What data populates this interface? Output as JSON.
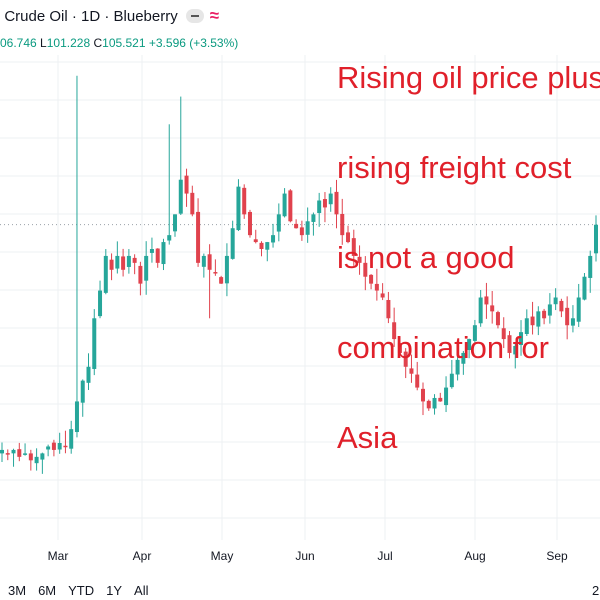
{
  "header": {
    "title": "I Crude Oil · 1D · Blueberry",
    "ohlc": {
      "open_frag": "06.746",
      "low_label": "L",
      "low": "101.228",
      "close_label": "C",
      "close": "105.521",
      "change": "+3.596 (+3.53%)"
    }
  },
  "annotation": {
    "lines": [
      "Rising oil price plus",
      "rising freight cost",
      "is not a good",
      "combination for",
      "Asia"
    ]
  },
  "range_buttons": [
    "3M",
    "6M",
    "YTD",
    "1Y",
    "All"
  ],
  "corner_fragment": "2",
  "chart_data": {
    "type": "candlestick",
    "title": "",
    "xlabel": "",
    "ylabel": "",
    "x_tick_labels": [
      "Mar",
      "Apr",
      "May",
      "Jun",
      "Jul",
      "Aug",
      "Sep"
    ],
    "y_range": [
      60,
      130
    ],
    "grid": true,
    "colors": {
      "up": "#26a69a",
      "down": "#e0424d"
    },
    "last_price": 105.521,
    "close_path": [
      [
        0,
        73
      ],
      [
        1,
        72.5
      ],
      [
        2,
        73
      ],
      [
        3,
        72
      ],
      [
        4,
        72.5
      ],
      [
        5,
        71.5
      ],
      [
        6,
        72
      ],
      [
        7,
        72.5
      ],
      [
        8,
        73.5
      ],
      [
        9,
        73
      ],
      [
        10,
        74
      ],
      [
        11,
        73.5
      ],
      [
        12,
        76
      ],
      [
        13,
        80
      ],
      [
        14,
        83
      ],
      [
        15,
        85
      ],
      [
        16,
        92
      ],
      [
        17,
        96
      ],
      [
        18,
        101
      ],
      [
        19,
        99
      ],
      [
        20,
        101
      ],
      [
        21,
        99
      ],
      [
        22,
        101
      ],
      [
        23,
        100
      ],
      [
        24,
        97
      ],
      [
        25,
        101
      ],
      [
        26,
        102
      ],
      [
        27,
        100
      ],
      [
        28,
        103
      ],
      [
        29,
        104
      ],
      [
        30,
        107
      ],
      [
        31,
        112
      ],
      [
        32,
        110
      ],
      [
        33,
        107
      ],
      [
        34,
        100
      ],
      [
        35,
        101
      ],
      [
        36,
        99
      ],
      [
        37,
        98.5
      ],
      [
        38,
        97
      ],
      [
        39,
        101
      ],
      [
        40,
        105
      ],
      [
        41,
        111
      ],
      [
        42,
        107
      ],
      [
        43,
        104
      ],
      [
        44,
        103
      ],
      [
        45,
        102
      ],
      [
        46,
        103
      ],
      [
        47,
        104
      ],
      [
        48,
        107
      ],
      [
        49,
        110
      ],
      [
        50,
        106
      ],
      [
        51,
        105
      ],
      [
        52,
        104
      ],
      [
        53,
        106
      ],
      [
        54,
        107
      ],
      [
        55,
        109
      ],
      [
        56,
        108
      ],
      [
        57,
        110
      ],
      [
        58,
        107
      ],
      [
        59,
        104
      ],
      [
        60,
        103
      ],
      [
        61,
        101
      ],
      [
        62,
        100
      ],
      [
        63,
        98
      ],
      [
        64,
        97
      ],
      [
        65,
        96
      ],
      [
        66,
        95
      ],
      [
        67,
        92
      ],
      [
        68,
        89
      ],
      [
        69,
        87
      ],
      [
        70,
        85
      ],
      [
        71,
        84
      ],
      [
        72,
        82
      ],
      [
        73,
        80
      ],
      [
        74,
        79
      ],
      [
        75,
        80.5
      ],
      [
        76,
        80
      ],
      [
        77,
        82
      ],
      [
        78,
        84
      ],
      [
        79,
        86
      ],
      [
        80,
        87
      ],
      [
        81,
        89
      ],
      [
        82,
        91
      ],
      [
        83,
        95
      ],
      [
        84,
        94
      ],
      [
        85,
        93
      ],
      [
        86,
        91
      ],
      [
        87,
        89
      ],
      [
        88,
        87
      ],
      [
        89,
        88
      ],
      [
        90,
        90
      ],
      [
        91,
        92
      ],
      [
        92,
        91
      ],
      [
        93,
        93
      ],
      [
        94,
        92
      ],
      [
        95,
        94
      ],
      [
        96,
        95
      ],
      [
        97,
        93
      ],
      [
        98,
        91
      ],
      [
        99,
        92
      ],
      [
        100,
        95
      ],
      [
        101,
        98
      ],
      [
        102,
        101
      ],
      [
        103,
        105.5
      ]
    ]
  }
}
